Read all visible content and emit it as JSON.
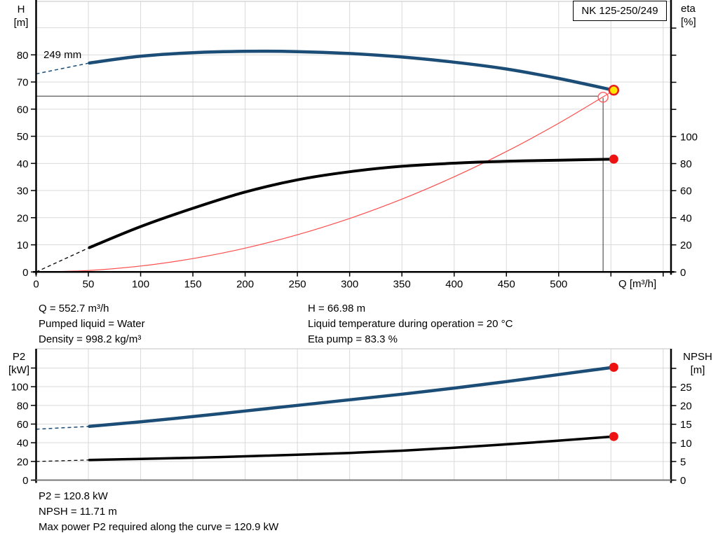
{
  "pump_name": "NK 125-250/249",
  "info_top": {
    "left": [
      "Q = 552.7 m³/h",
      "Pumped liquid = Water",
      "Density = 998.2 kg/m³"
    ],
    "right": [
      "H = 66.98 m",
      "Liquid temperature during operation = 20 °C",
      "Eta pump = 83.3 %"
    ]
  },
  "info_bottom": [
    "P2 = 120.8 kW",
    "NPSH = 11.71 m",
    "Max power P2 required along the curve = 120.9 kW"
  ],
  "colors": {
    "curve_blue": "#1b4d77",
    "curve_black": "#000000",
    "system_red": "#ff4d4d",
    "marker_red": "#ee1111",
    "marker_yellow": "#ffe800",
    "marker_ring": "#e82020",
    "grid": "#d9d9d9",
    "axis": "#000000"
  },
  "chart_data": [
    {
      "type": "line",
      "id": "q-h-eta-chart",
      "x_axis": {
        "title": "Q [m³/h]",
        "min": 0,
        "max": 607.5,
        "tick_step": 50,
        "tick_end": 600,
        "grid_end": 600,
        "last_label": 500
      },
      "y_left": {
        "title": [
          "H",
          "[m]"
        ],
        "min": 0,
        "max": 99.7,
        "tick_step": 10,
        "tick_end": 80,
        "grid_end": 90,
        "last_label": 80
      },
      "y_right": {
        "title": [
          "eta",
          "[%]"
        ],
        "min": 0,
        "max": 199.7,
        "tick_step": 20,
        "tick_end": 180,
        "grid_end": 0,
        "last_label": 100
      },
      "series": [
        {
          "name": "system-curve",
          "axis": "left",
          "color": "#ff4d4d",
          "width": 1.2,
          "points": [
            [
              0,
              0
            ],
            [
              50,
              0.55
            ],
            [
              100,
              2.19
            ],
            [
              150,
              4.93
            ],
            [
              200,
              8.77
            ],
            [
              250,
              13.7
            ],
            [
              300,
              19.73
            ],
            [
              350,
              26.85
            ],
            [
              400,
              35.07
            ],
            [
              450,
              44.39
            ],
            [
              500,
              54.8
            ],
            [
              542.5,
              64.51
            ],
            [
              552.7,
              66.98
            ]
          ]
        },
        {
          "name": "head-curve",
          "label": "249 mm",
          "axis": "left",
          "color": "#1b4d77",
          "width": 4.5,
          "dash_width": 1.5,
          "dash": [
            [
              0,
              73
            ],
            [
              51,
              77
            ]
          ],
          "points": [
            [
              51,
              77
            ],
            [
              100,
              79.5
            ],
            [
              150,
              80.8
            ],
            [
              200,
              81.3
            ],
            [
              250,
              81.2
            ],
            [
              300,
              80.5
            ],
            [
              350,
              79.2
            ],
            [
              400,
              77.3
            ],
            [
              450,
              74.8
            ],
            [
              500,
              71.3
            ],
            [
              552.7,
              66.98
            ]
          ]
        },
        {
          "name": "efficiency-curve",
          "axis": "right",
          "color": "#000000",
          "width": 4,
          "dash_width": 1.3,
          "dash": [
            [
              0,
              0
            ],
            [
              51,
              18
            ]
          ],
          "points": [
            [
              51,
              18
            ],
            [
              100,
              33.5
            ],
            [
              150,
              47
            ],
            [
              200,
              59
            ],
            [
              250,
              68
            ],
            [
              300,
              74
            ],
            [
              350,
              78
            ],
            [
              400,
              80.3
            ],
            [
              450,
              81.7
            ],
            [
              500,
              82.5
            ],
            [
              552.7,
              83.3
            ]
          ]
        }
      ],
      "ref": {
        "q": 542.5,
        "circle_v": 64.4,
        "hline_v": 64.8
      },
      "markers": [
        {
          "name": "duty-reference-circle",
          "axis": "left",
          "q": 542.5,
          "v": 64.4,
          "r": 7,
          "fill": "none",
          "stroke": "#ff5c5c",
          "stroke_width": 1.4
        },
        {
          "name": "duty-point-marker",
          "axis": "left",
          "q": 552.7,
          "v": 66.98,
          "r": 6.5,
          "fill": "#ffe800",
          "stroke": "#e82020",
          "stroke_width": 2.5
        },
        {
          "name": "eta-point-marker",
          "axis": "right",
          "q": 552.7,
          "v": 83.3,
          "r": 6.5,
          "fill": "#ee1111"
        }
      ]
    },
    {
      "type": "line",
      "id": "p2-npsh-chart",
      "x_axis": {
        "title": "",
        "min": 0,
        "max": 607.5,
        "tick_step": 50,
        "tick_end": 600,
        "grid_end": 600,
        "last_label": -1
      },
      "y_left": {
        "title": [
          "P2",
          "[kW]"
        ],
        "min": 0,
        "max": 140.6,
        "tick_step": 20,
        "tick_end": 120,
        "grid_end": 120,
        "last_label": 100
      },
      "y_right": {
        "title": [
          "NPSH",
          "[m]"
        ],
        "min": 0,
        "max": 35.25,
        "tick_step": 5,
        "tick_end": 30,
        "grid_end": 0,
        "last_label": 25
      },
      "series": [
        {
          "name": "p2-curve",
          "axis": "left",
          "color": "#1b4d77",
          "width": 4.5,
          "dash_width": 1.5,
          "dash": [
            [
              0,
              54.5
            ],
            [
              51,
              57.5
            ]
          ],
          "points": [
            [
              51,
              57.5
            ],
            [
              100,
              62.5
            ],
            [
              150,
              68
            ],
            [
              200,
              74
            ],
            [
              250,
              80
            ],
            [
              300,
              86
            ],
            [
              350,
              92
            ],
            [
              400,
              98.5
            ],
            [
              450,
              105.5
            ],
            [
              500,
              113
            ],
            [
              552.7,
              120.8
            ]
          ]
        },
        {
          "name": "npsh-curve",
          "axis": "right",
          "color": "#000000",
          "width": 3.5,
          "dash_width": 1.3,
          "dash": [
            [
              0,
              5.0
            ],
            [
              51,
              5.4
            ]
          ],
          "points": [
            [
              51,
              5.4
            ],
            [
              100,
              5.7
            ],
            [
              150,
              6.0
            ],
            [
              200,
              6.4
            ],
            [
              250,
              6.8
            ],
            [
              300,
              7.3
            ],
            [
              350,
              7.9
            ],
            [
              400,
              8.7
            ],
            [
              450,
              9.6
            ],
            [
              500,
              10.6
            ],
            [
              552.7,
              11.71
            ]
          ]
        }
      ],
      "markers": [
        {
          "name": "p2-point-marker",
          "axis": "left",
          "q": 552.7,
          "v": 120.8,
          "r": 6.5,
          "fill": "#ee1111"
        },
        {
          "name": "npsh-point-marker",
          "axis": "right",
          "q": 552.7,
          "v": 11.71,
          "r": 6.5,
          "fill": "#ee1111"
        }
      ]
    }
  ]
}
